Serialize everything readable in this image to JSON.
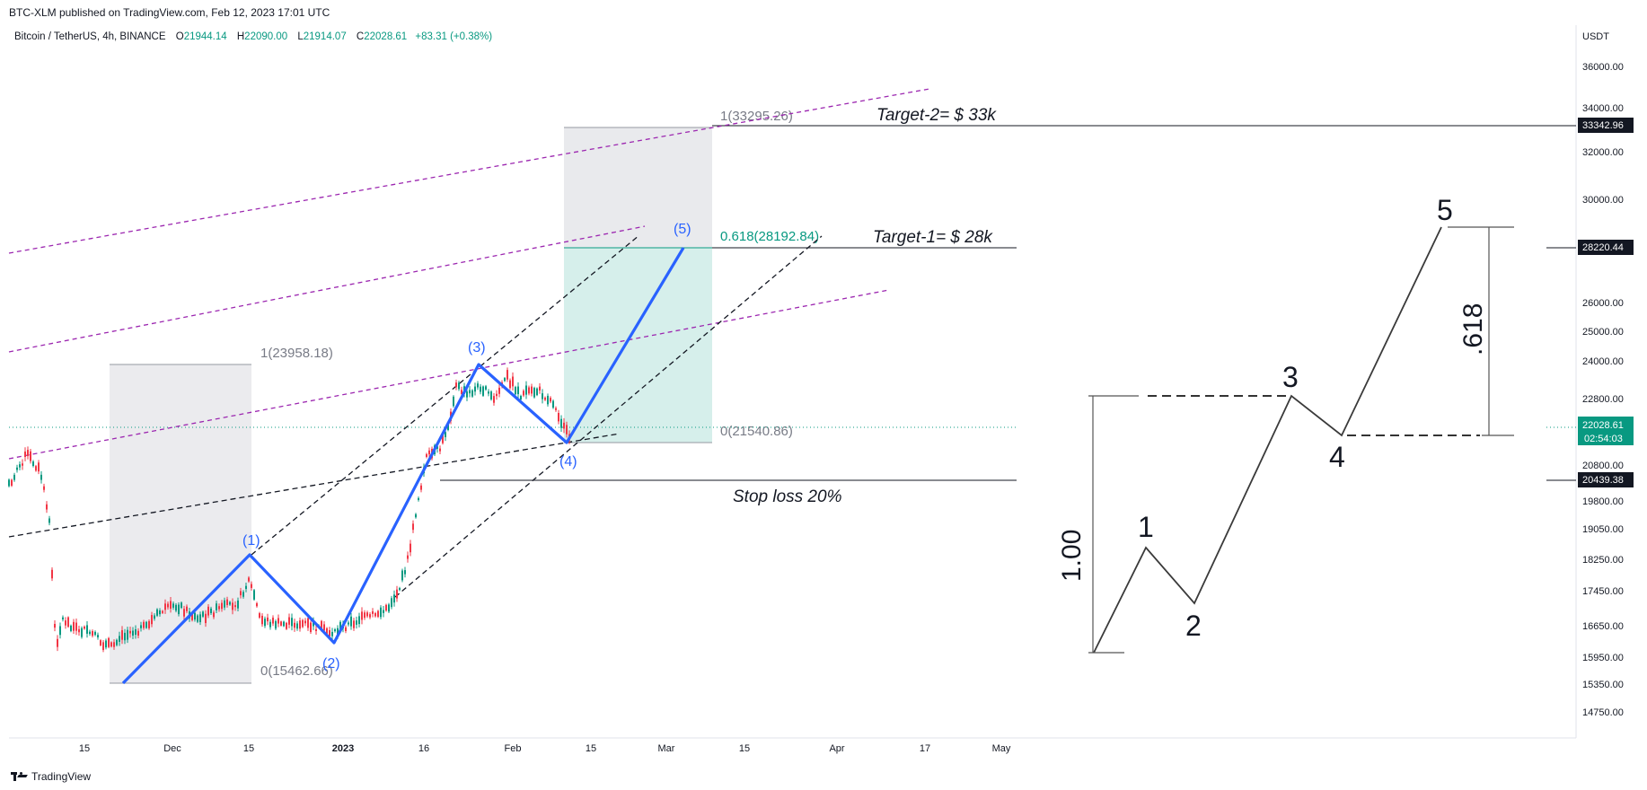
{
  "header": {
    "published_line": "BTC-XLM published on TradingView.com, Feb 12, 2023 17:01 UTC"
  },
  "symbol": {
    "name": "Bitcoin / TetherUS, 4h, BINANCE",
    "open_label": "O",
    "open": "21944.14",
    "high_label": "H",
    "high": "22090.00",
    "low_label": "L",
    "low": "21914.07",
    "close_label": "C",
    "close": "22028.61",
    "change": "+83.31 (+0.38%)"
  },
  "price_axis": {
    "currency": "USDT",
    "ticks": [
      "36000.00",
      "34000.00",
      "32000.00",
      "30000.00",
      "26000.00",
      "25000.00",
      "24000.00",
      "22800.00",
      "20800.00",
      "19800.00",
      "19050.00",
      "18250.00",
      "17450.00",
      "16650.00",
      "15950.00",
      "15350.00",
      "14750.00"
    ],
    "badges": {
      "target2": "33342.96",
      "target1": "28220.44",
      "current_price": "22028.61",
      "countdown": "02:54:03",
      "stop": "20439.38"
    }
  },
  "time_axis": {
    "ticks": [
      "15",
      "Dec",
      "15",
      "2023",
      "16",
      "Feb",
      "15",
      "Mar",
      "15",
      "Apr",
      "17",
      "May"
    ]
  },
  "annotations": {
    "target2": "Target-2= $ 33k",
    "target1": "Target-1= $ 28k",
    "stop_loss": "Stop loss 20%",
    "fib_a_top": "1(23958.18)",
    "fib_a_bottom": "0(15462.66)",
    "fib_b_top": "1(33295.26)",
    "fib_b_mid": "0.618(28192.84)",
    "fib_b_bottom": "0(21540.86)",
    "waves": [
      "(1)",
      "(2)",
      "(3)",
      "(4)",
      "(5)"
    ]
  },
  "diagram": {
    "labels": [
      "1",
      "2",
      "3",
      "4",
      "5"
    ],
    "ratio_full": "1.00",
    "ratio_fib": ".618"
  },
  "colors": {
    "wave": "#2962ff",
    "up": "#089981",
    "down": "#f23645",
    "channel": "#9c27b0",
    "target_zone": "#d1ede9"
  },
  "footer": {
    "brand": "TradingView"
  }
}
